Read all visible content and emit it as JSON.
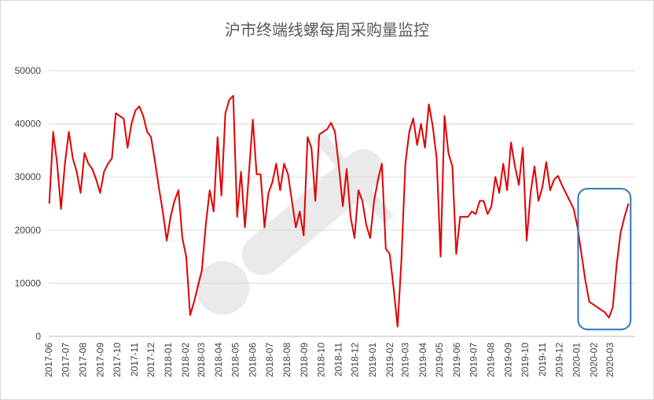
{
  "chart_data": {
    "type": "line",
    "title": "沪市终端线螺每周采购量监控",
    "xlabel": "",
    "ylabel": "",
    "ylim": [
      0,
      50000
    ],
    "yticks": [
      0,
      10000,
      20000,
      30000,
      40000,
      50000
    ],
    "x_tick_labels": [
      "2017-06",
      "2017-07",
      "2017-08",
      "2017-09",
      "2017-10",
      "2017-11",
      "2017-12",
      "2018-01",
      "2018-02",
      "2018-03",
      "2018-04",
      "2018-05",
      "2018-06",
      "2018-07",
      "2018-08",
      "2018-09",
      "2018-10",
      "2018-11",
      "2018-12",
      "2019-01",
      "2019-02",
      "2019-03",
      "2019-04",
      "2019-05",
      "2019-06",
      "2019-07",
      "2019-08",
      "2019-09",
      "2019-10",
      "2019-11",
      "2019-12",
      "2020-01",
      "2020-02",
      "2020-03"
    ],
    "grid": "horizontal",
    "series": [
      {
        "color": "#e00000",
        "points": [
          [
            "2017-06-02",
            25000
          ],
          [
            "2017-06-09",
            38500
          ],
          [
            "2017-06-16",
            32500
          ],
          [
            "2017-06-23",
            24000
          ],
          [
            "2017-06-30",
            32500
          ],
          [
            "2017-07-07",
            38500
          ],
          [
            "2017-07-14",
            33500
          ],
          [
            "2017-07-21",
            31000
          ],
          [
            "2017-07-28",
            27000
          ],
          [
            "2017-08-04",
            34500
          ],
          [
            "2017-08-11",
            32500
          ],
          [
            "2017-08-18",
            31500
          ],
          [
            "2017-08-25",
            29500
          ],
          [
            "2017-09-01",
            27000
          ],
          [
            "2017-09-08",
            31000
          ],
          [
            "2017-09-15",
            32500
          ],
          [
            "2017-09-22",
            33500
          ],
          [
            "2017-09-29",
            42000
          ],
          [
            "2017-10-06",
            41500
          ],
          [
            "2017-10-13",
            41000
          ],
          [
            "2017-10-20",
            35500
          ],
          [
            "2017-10-27",
            40000
          ],
          [
            "2017-11-03",
            42500
          ],
          [
            "2017-11-10",
            43300
          ],
          [
            "2017-11-17",
            41500
          ],
          [
            "2017-11-24",
            38500
          ],
          [
            "2017-12-01",
            37500
          ],
          [
            "2017-12-08",
            33000
          ],
          [
            "2017-12-15",
            28000
          ],
          [
            "2017-12-22",
            23500
          ],
          [
            "2017-12-29",
            18000
          ],
          [
            "2018-01-05",
            22500
          ],
          [
            "2018-01-12",
            25500
          ],
          [
            "2018-01-19",
            27500
          ],
          [
            "2018-01-26",
            18500
          ],
          [
            "2018-02-02",
            15000
          ],
          [
            "2018-02-09",
            4000
          ],
          [
            "2018-02-16",
            6500
          ],
          [
            "2018-02-23",
            9500
          ],
          [
            "2018-03-02",
            12500
          ],
          [
            "2018-03-09",
            21000
          ],
          [
            "2018-03-16",
            27500
          ],
          [
            "2018-03-23",
            23500
          ],
          [
            "2018-03-30",
            37500
          ],
          [
            "2018-04-06",
            26500
          ],
          [
            "2018-04-13",
            42000
          ],
          [
            "2018-04-20",
            44500
          ],
          [
            "2018-04-27",
            45300
          ],
          [
            "2018-05-04",
            22500
          ],
          [
            "2018-05-11",
            31000
          ],
          [
            "2018-05-18",
            20500
          ],
          [
            "2018-05-25",
            30500
          ],
          [
            "2018-06-01",
            40800
          ],
          [
            "2018-06-08",
            30500
          ],
          [
            "2018-06-15",
            30500
          ],
          [
            "2018-06-22",
            20500
          ],
          [
            "2018-06-29",
            27000
          ],
          [
            "2018-07-06",
            29000
          ],
          [
            "2018-07-13",
            32500
          ],
          [
            "2018-07-20",
            27500
          ],
          [
            "2018-07-27",
            32500
          ],
          [
            "2018-08-03",
            30500
          ],
          [
            "2018-08-10",
            25500
          ],
          [
            "2018-08-17",
            20500
          ],
          [
            "2018-08-24",
            23500
          ],
          [
            "2018-08-31",
            19000
          ],
          [
            "2018-09-07",
            37500
          ],
          [
            "2018-09-14",
            35500
          ],
          [
            "2018-09-21",
            25500
          ],
          [
            "2018-09-28",
            38000
          ],
          [
            "2018-10-05",
            38500
          ],
          [
            "2018-10-12",
            39000
          ],
          [
            "2018-10-19",
            40200
          ],
          [
            "2018-10-26",
            38500
          ],
          [
            "2018-11-02",
            32000
          ],
          [
            "2018-11-09",
            24500
          ],
          [
            "2018-11-16",
            31500
          ],
          [
            "2018-11-23",
            22500
          ],
          [
            "2018-11-30",
            18500
          ],
          [
            "2018-12-07",
            27500
          ],
          [
            "2018-12-14",
            25500
          ],
          [
            "2018-12-21",
            21000
          ],
          [
            "2018-12-28",
            18500
          ],
          [
            "2019-01-04",
            25500
          ],
          [
            "2019-01-11",
            29500
          ],
          [
            "2019-01-18",
            32500
          ],
          [
            "2019-01-25",
            16500
          ],
          [
            "2019-02-01",
            15500
          ],
          [
            "2019-02-08",
            9000
          ],
          [
            "2019-02-15",
            1800
          ],
          [
            "2019-02-22",
            14500
          ],
          [
            "2019-03-01",
            32500
          ],
          [
            "2019-03-08",
            38500
          ],
          [
            "2019-03-15",
            41000
          ],
          [
            "2019-03-22",
            36000
          ],
          [
            "2019-03-29",
            40000
          ],
          [
            "2019-04-05",
            35500
          ],
          [
            "2019-04-12",
            43700
          ],
          [
            "2019-04-19",
            39500
          ],
          [
            "2019-04-26",
            33500
          ],
          [
            "2019-05-03",
            15000
          ],
          [
            "2019-05-10",
            41500
          ],
          [
            "2019-05-17",
            34500
          ],
          [
            "2019-05-24",
            32000
          ],
          [
            "2019-05-31",
            15500
          ],
          [
            "2019-06-07",
            22500
          ],
          [
            "2019-06-14",
            22500
          ],
          [
            "2019-06-21",
            22500
          ],
          [
            "2019-06-28",
            23500
          ],
          [
            "2019-07-05",
            23000
          ],
          [
            "2019-07-12",
            25500
          ],
          [
            "2019-07-19",
            25500
          ],
          [
            "2019-07-26",
            23000
          ],
          [
            "2019-08-02",
            24500
          ],
          [
            "2019-08-09",
            30000
          ],
          [
            "2019-08-16",
            27000
          ],
          [
            "2019-08-23",
            32500
          ],
          [
            "2019-08-30",
            27500
          ],
          [
            "2019-09-06",
            36500
          ],
          [
            "2019-09-13",
            32000
          ],
          [
            "2019-09-20",
            28500
          ],
          [
            "2019-09-27",
            35500
          ],
          [
            "2019-10-04",
            18000
          ],
          [
            "2019-10-11",
            27000
          ],
          [
            "2019-10-18",
            32000
          ],
          [
            "2019-10-25",
            25500
          ],
          [
            "2019-11-01",
            28000
          ],
          [
            "2019-11-08",
            32800
          ],
          [
            "2019-11-15",
            27500
          ],
          [
            "2019-11-22",
            29500
          ],
          [
            "2019-11-29",
            30200
          ],
          [
            "2019-12-06",
            28500
          ],
          [
            "2019-12-13",
            27000
          ],
          [
            "2019-12-20",
            25500
          ],
          [
            "2019-12-27",
            24000
          ],
          [
            "2020-01-03",
            20500
          ],
          [
            "2020-01-10",
            15500
          ],
          [
            "2020-01-17",
            10500
          ],
          [
            "2020-01-24",
            6500
          ],
          [
            "2020-01-31",
            6000
          ],
          [
            "2020-02-07",
            5500
          ],
          [
            "2020-02-14",
            5000
          ],
          [
            "2020-02-21",
            4500
          ],
          [
            "2020-02-28",
            3500
          ],
          [
            "2020-03-06",
            5500
          ],
          [
            "2020-03-13",
            13500
          ],
          [
            "2020-03-20",
            19500
          ],
          [
            "2020-03-27",
            22500
          ],
          [
            "2020-04-03",
            25000
          ]
        ]
      }
    ],
    "annotations": [
      {
        "type": "rounded-box",
        "color": "#2e75b6",
        "x_range": [
          "2020-01-04",
          "2020-04-07"
        ],
        "y_range": [
          1300,
          27800
        ]
      }
    ]
  }
}
